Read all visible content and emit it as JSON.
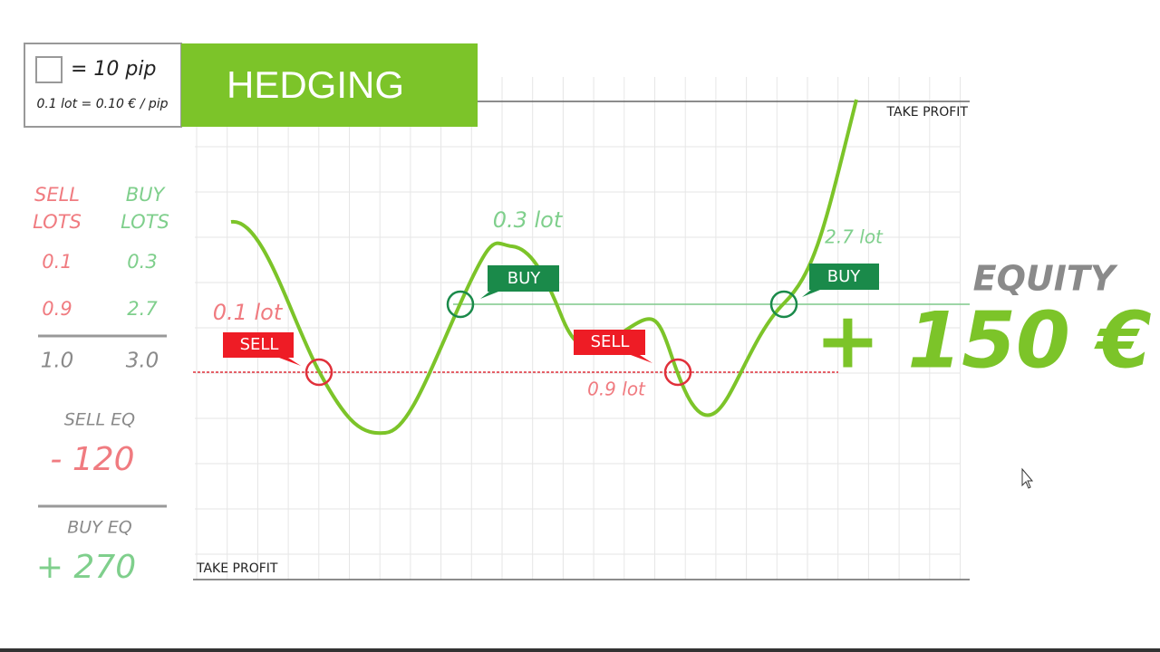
{
  "legend": {
    "unit": "= 10 pip",
    "lot_value": "0.1 lot = 0.10 € / pip"
  },
  "title": "HEDGING",
  "lots_table": {
    "headers": [
      [
        "SELL",
        "LOTS"
      ],
      [
        "BUY",
        "LOTS"
      ]
    ],
    "rows": [
      [
        "0.1",
        "0.3"
      ],
      [
        "0.9",
        "2.7"
      ]
    ],
    "totals": [
      "1.0",
      "3.0"
    ]
  },
  "sell_eq": {
    "label": "SELL EQ",
    "value": "- 120"
  },
  "buy_eq": {
    "label": "BUY EQ",
    "value": "+ 270"
  },
  "chart": {
    "take_profit_top": "TAKE PROFIT",
    "take_profit_bottom": "TAKE PROFIT",
    "lot_labels": [
      "0.1 lot",
      "0.3 lot",
      "0.9 lot",
      "2.7 lot"
    ],
    "tags": [
      "SELL",
      "BUY",
      "SELL",
      "BUY"
    ]
  },
  "equity": {
    "label": "EQUITY",
    "value": "+ 150 €"
  }
}
